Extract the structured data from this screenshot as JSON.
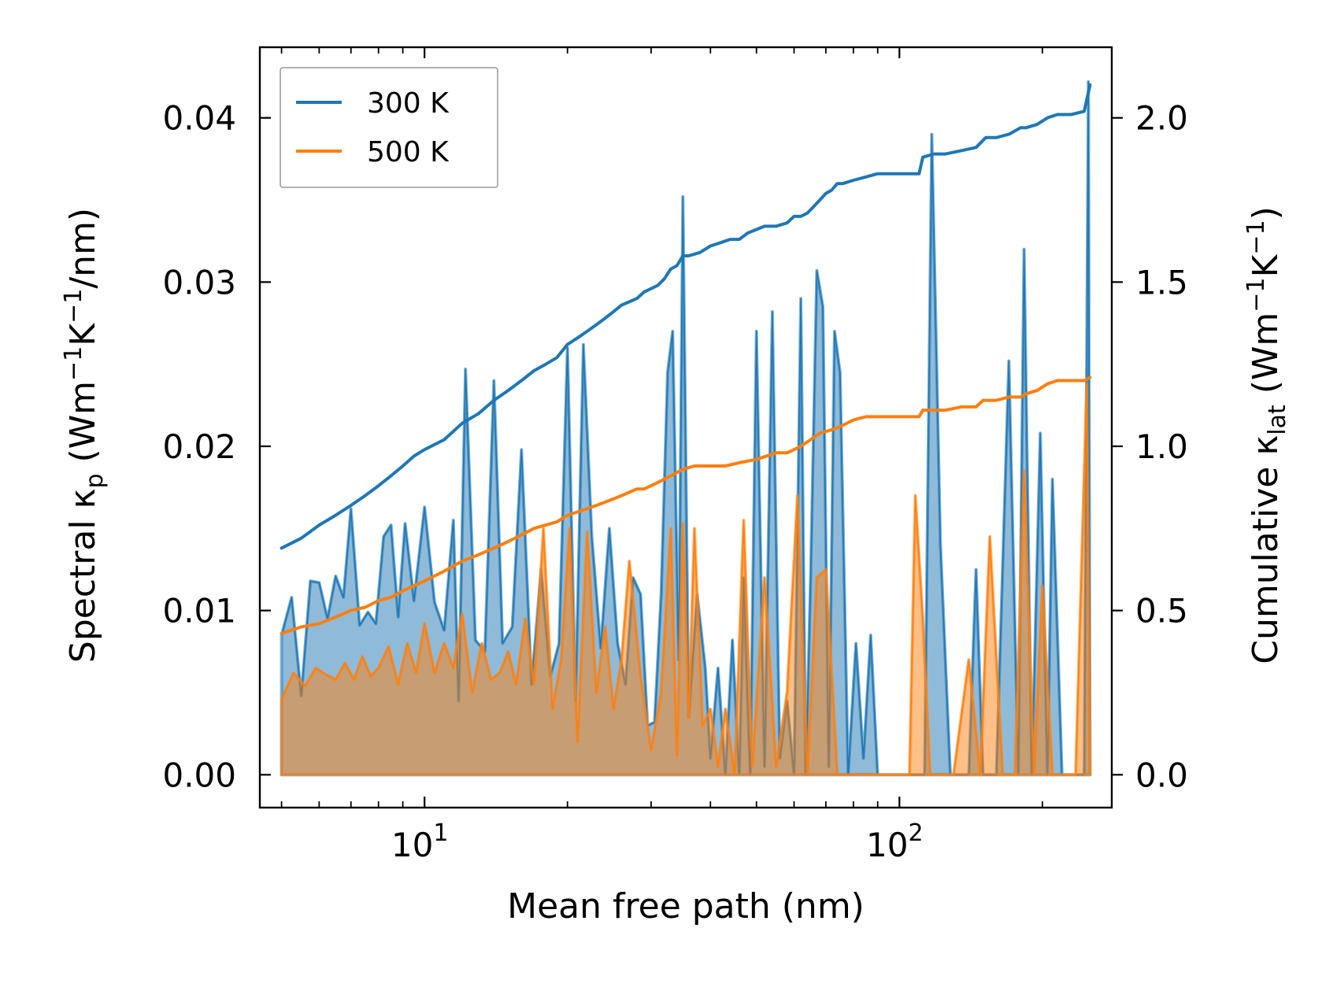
{
  "chart_data": {
    "type": "area",
    "xscale": "log",
    "xlim": [
      4.5,
      280
    ],
    "ylim_left": [
      -0.002,
      0.0443
    ],
    "ylim_right": [
      -0.1,
      2.215
    ],
    "xlabel": "Mean free path (nm)",
    "ylabel_left": {
      "base": "Spectral κ",
      "sub": "p",
      "unit_open": " (Wm",
      "sup1": "−1",
      "unit_mid": "K",
      "sup2": "−1",
      "unit_close": "/nm)"
    },
    "ylabel_right": {
      "base": "Cumulative κ",
      "sub": "lat",
      "unit_open": " (Wm",
      "sup1": "−1",
      "unit_mid": "K",
      "sup2": "−1",
      "unit_close": ")"
    },
    "x_ticks": [
      {
        "value": 10,
        "base": "10",
        "exp": "1"
      },
      {
        "value": 100,
        "base": "10",
        "exp": "2"
      }
    ],
    "y_ticks_left": [
      {
        "value": 0.0,
        "label": "0.00"
      },
      {
        "value": 0.01,
        "label": "0.01"
      },
      {
        "value": 0.02,
        "label": "0.02"
      },
      {
        "value": 0.03,
        "label": "0.03"
      },
      {
        "value": 0.04,
        "label": "0.04"
      }
    ],
    "y_ticks_right": [
      {
        "value": 0.0,
        "label": "0.0"
      },
      {
        "value": 0.5,
        "label": "0.5"
      },
      {
        "value": 1.0,
        "label": "1.0"
      },
      {
        "value": 1.5,
        "label": "1.5"
      },
      {
        "value": 2.0,
        "label": "2.0"
      }
    ],
    "legend": {
      "position": "upper-left",
      "entries": [
        {
          "label": "300 K",
          "color": "#1f77b4"
        },
        {
          "label": "500 K",
          "color": "#ff7f0e"
        }
      ]
    },
    "spectral_series": [
      {
        "name": "300 K",
        "color": "#1f77b4",
        "x": [
          5.0,
          5.25,
          5.5,
          5.75,
          6.0,
          6.25,
          6.5,
          6.75,
          7.0,
          7.3,
          7.6,
          7.9,
          8.2,
          8.5,
          8.8,
          9.1,
          9.5,
          10.0,
          10.5,
          11.0,
          11.5,
          11.8,
          12.2,
          12.8,
          13.4,
          14.0,
          14.6,
          15.3,
          16.0,
          16.8,
          17.6,
          18.4,
          19.2,
          20.0,
          20.8,
          21.6,
          22.5,
          23.5,
          24.5,
          25.5,
          26.5,
          27.5,
          28.5,
          29.5,
          30.5,
          31.5,
          32.5,
          33.3,
          34.3,
          35.0,
          36.0,
          37.5,
          39.0,
          40.0,
          41.5,
          43.0,
          44.5,
          46.0,
          47.0,
          48.5,
          50.0,
          52.0,
          54.0,
          56.0,
          58.0,
          60.0,
          62.0,
          63.5,
          65.0,
          67.0,
          69.0,
          71.0,
          73.0,
          75.0,
          78.0,
          81.0,
          84.0,
          87.0,
          90.0,
          95.0,
          100.0,
          106.0,
          110.0,
          113.0,
          117.0,
          122.0,
          128.0,
          135.0,
          140.0,
          145.0,
          150.0,
          160.0,
          170.0,
          178.0,
          183.0,
          190.0,
          198.0,
          205.0,
          210.0,
          220.0,
          235.0,
          245.0,
          250.0,
          252.0
        ],
        "values": [
          0.0085,
          0.0108,
          0.0048,
          0.0118,
          0.0117,
          0.0095,
          0.0121,
          0.0108,
          0.0162,
          0.0091,
          0.0099,
          0.0092,
          0.0145,
          0.0152,
          0.0096,
          0.0153,
          0.0106,
          0.0163,
          0.0105,
          0.0088,
          0.0155,
          0.0045,
          0.0247,
          0.0082,
          0.0075,
          0.024,
          0.008,
          0.009,
          0.0198,
          0.0055,
          0.0125,
          0.006,
          0.008,
          0.026,
          0.0045,
          0.0262,
          0.0145,
          0.0077,
          0.015,
          0.008,
          0.0055,
          0.012,
          0.011,
          0.003,
          0.0032,
          0.011,
          0.0245,
          0.027,
          0.007,
          0.0352,
          0.0035,
          0.011,
          0.0065,
          0.001,
          0.0065,
          0.0,
          0.0082,
          0.0,
          0.012,
          0.0,
          0.027,
          0.0005,
          0.0282,
          0.001,
          0.0045,
          0.0,
          0.029,
          0.0,
          0.012,
          0.0307,
          0.0285,
          0.0005,
          0.027,
          0.0245,
          0.0,
          0.008,
          0.001,
          0.0085,
          0.0,
          0.0,
          0.0,
          0.0,
          0.0,
          0.0,
          0.039,
          0.014,
          0.0,
          0.0,
          0.0,
          0.0125,
          0.0,
          0.0,
          0.0252,
          0.0,
          0.032,
          0.0,
          0.0208,
          0.0,
          0.018,
          0.0,
          0.0,
          0.0,
          0.0422,
          0.0
        ]
      },
      {
        "name": "500 K",
        "color": "#ff7f0e",
        "x": [
          5.0,
          5.3,
          5.6,
          5.9,
          6.2,
          6.5,
          6.8,
          7.1,
          7.4,
          7.7,
          8.0,
          8.4,
          8.8,
          9.2,
          9.6,
          10.0,
          10.5,
          11.0,
          11.5,
          12.0,
          12.6,
          13.2,
          13.8,
          14.4,
          15.0,
          15.6,
          16.3,
          17.0,
          17.8,
          18.6,
          19.4,
          20.2,
          21.0,
          22.0,
          23.0,
          24.0,
          25.0,
          26.0,
          27.0,
          28.5,
          30.0,
          31.5,
          33.0,
          34.0,
          35.0,
          36.0,
          37.0,
          38.5,
          40.0,
          41.5,
          43.0,
          45.0,
          47.0,
          49.0,
          52.0,
          55.0,
          58.0,
          61.0,
          64.0,
          67.0,
          70.0,
          74.0,
          78.0,
          85.0,
          95.0,
          105.0,
          108.0,
          112.0,
          116.0,
          122.0,
          130.0,
          140.0,
          148.0,
          155.0,
          165.0,
          175.0,
          183.0,
          192.0,
          200.0,
          210.0,
          220.0,
          235.0,
          248.0,
          252.0
        ],
        "values": [
          0.0046,
          0.0062,
          0.0054,
          0.0065,
          0.0061,
          0.0058,
          0.0068,
          0.0058,
          0.0072,
          0.006,
          0.0065,
          0.0078,
          0.0055,
          0.008,
          0.0062,
          0.0092,
          0.0062,
          0.008,
          0.0065,
          0.0098,
          0.005,
          0.008,
          0.0058,
          0.0062,
          0.0075,
          0.0055,
          0.0095,
          0.0055,
          0.015,
          0.004,
          0.007,
          0.015,
          0.002,
          0.0148,
          0.005,
          0.009,
          0.004,
          0.007,
          0.013,
          0.006,
          0.0015,
          0.005,
          0.015,
          0.0012,
          0.0153,
          0.0035,
          0.015,
          0.003,
          0.004,
          0.0005,
          0.004,
          0.0,
          0.0155,
          0.0005,
          0.012,
          0.0005,
          0.005,
          0.017,
          0.0,
          0.012,
          0.0125,
          0.0,
          0.0,
          0.0,
          0.0,
          0.0,
          0.017,
          0.0095,
          0.0,
          0.0,
          0.0,
          0.007,
          0.0,
          0.0145,
          0.0,
          0.0,
          0.0185,
          0.0,
          0.0115,
          0.0,
          0.0,
          0.0,
          0.0238,
          0.0
        ]
      }
    ],
    "cumulative_series": [
      {
        "name": "300 K",
        "color": "#1f77b4",
        "x": [
          5.0,
          5.5,
          6.0,
          6.5,
          7.0,
          7.5,
          8.0,
          8.5,
          9.0,
          9.5,
          10.0,
          11.0,
          12.0,
          13.0,
          14.0,
          15.0,
          16.0,
          17.0,
          18.0,
          19.0,
          20.0,
          21.0,
          22.0,
          23.0,
          24.0,
          25.0,
          26.0,
          27.0,
          28.0,
          29.0,
          30.0,
          31.0,
          32.0,
          33.0,
          34.0,
          35.0,
          36.0,
          38.0,
          40.0,
          42.0,
          44.0,
          46.0,
          48.0,
          50.0,
          52.0,
          55.0,
          58.0,
          60.0,
          62.0,
          64.0,
          66.0,
          68.0,
          70.0,
          72.0,
          74.0,
          76.0,
          80.0,
          85.0,
          90.0,
          100.0,
          110.0,
          112.0,
          118.0,
          125.0,
          135.0,
          145.0,
          152.0,
          160.0,
          170.0,
          180.0,
          185.0,
          195.0,
          205.0,
          215.0,
          230.0,
          245.0,
          252.0
        ],
        "values": [
          0.69,
          0.72,
          0.76,
          0.79,
          0.82,
          0.85,
          0.88,
          0.91,
          0.94,
          0.97,
          0.99,
          1.02,
          1.07,
          1.1,
          1.14,
          1.17,
          1.2,
          1.23,
          1.25,
          1.27,
          1.31,
          1.33,
          1.35,
          1.37,
          1.39,
          1.41,
          1.43,
          1.44,
          1.45,
          1.47,
          1.48,
          1.49,
          1.51,
          1.54,
          1.55,
          1.58,
          1.58,
          1.59,
          1.61,
          1.62,
          1.63,
          1.63,
          1.65,
          1.66,
          1.67,
          1.67,
          1.68,
          1.7,
          1.7,
          1.71,
          1.73,
          1.75,
          1.77,
          1.78,
          1.8,
          1.8,
          1.81,
          1.82,
          1.83,
          1.83,
          1.83,
          1.88,
          1.89,
          1.89,
          1.9,
          1.91,
          1.94,
          1.94,
          1.95,
          1.97,
          1.97,
          1.98,
          2.0,
          2.01,
          2.01,
          2.02,
          2.1
        ]
      },
      {
        "name": "500 K",
        "color": "#ff7f0e",
        "x": [
          5.0,
          5.5,
          6.0,
          6.5,
          7.0,
          7.5,
          8.0,
          8.5,
          9.0,
          10.0,
          11.0,
          12.0,
          13.0,
          14.0,
          15.0,
          16.0,
          17.0,
          18.0,
          19.0,
          20.0,
          21.0,
          22.0,
          23.0,
          24.0,
          25.0,
          26.0,
          27.0,
          28.0,
          29.0,
          30.0,
          31.0,
          32.0,
          33.0,
          34.0,
          35.0,
          37.0,
          40.0,
          43.0,
          46.0,
          50.0,
          55.0,
          58.0,
          60.0,
          62.0,
          65.0,
          68.0,
          72.0,
          75.0,
          80.0,
          85.0,
          90.0,
          100.0,
          110.0,
          112.0,
          118.0,
          125.0,
          135.0,
          145.0,
          150.0,
          160.0,
          170.0,
          180.0,
          185.0,
          195.0,
          205.0,
          215.0,
          230.0,
          245.0,
          252.0
        ],
        "values": [
          0.43,
          0.45,
          0.46,
          0.48,
          0.5,
          0.51,
          0.53,
          0.54,
          0.56,
          0.59,
          0.62,
          0.65,
          0.67,
          0.69,
          0.71,
          0.73,
          0.75,
          0.76,
          0.77,
          0.79,
          0.8,
          0.81,
          0.82,
          0.83,
          0.84,
          0.85,
          0.86,
          0.87,
          0.87,
          0.88,
          0.89,
          0.9,
          0.91,
          0.92,
          0.93,
          0.94,
          0.94,
          0.94,
          0.95,
          0.96,
          0.98,
          0.98,
          0.99,
          1.0,
          1.02,
          1.04,
          1.05,
          1.06,
          1.08,
          1.09,
          1.09,
          1.09,
          1.09,
          1.11,
          1.11,
          1.11,
          1.12,
          1.12,
          1.14,
          1.14,
          1.15,
          1.15,
          1.16,
          1.17,
          1.19,
          1.2,
          1.2,
          1.2,
          1.21
        ]
      }
    ]
  }
}
